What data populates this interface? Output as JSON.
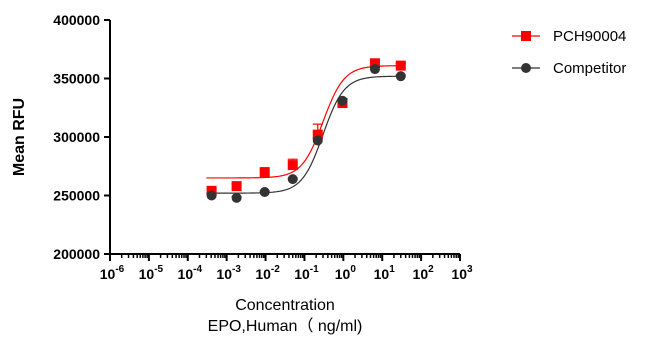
{
  "chart_data": {
    "type": "scatter",
    "xscale": "log",
    "xlim": [
      1e-06,
      1000
    ],
    "ylim": [
      200000,
      400000
    ],
    "yticks": [
      200000,
      250000,
      300000,
      350000,
      400000
    ],
    "ytick_labels": [
      "200000",
      "250000",
      "300000",
      "350000",
      "400000"
    ],
    "xticks": [
      {
        "base": "10",
        "exp": "-6"
      },
      {
        "base": "10",
        "exp": "-5"
      },
      {
        "base": "10",
        "exp": "-4"
      },
      {
        "base": "10",
        "exp": "-3"
      },
      {
        "base": "10",
        "exp": "-2"
      },
      {
        "base": "10",
        "exp": "-1"
      },
      {
        "base": "10",
        "exp": "0"
      },
      {
        "base": "10",
        "exp": "1"
      },
      {
        "base": "10",
        "exp": "2"
      },
      {
        "base": "10",
        "exp": "3"
      }
    ],
    "xlabel": "Concentration",
    "xlabel_line2": "EPO,Human（ ng/ml)",
    "ylabel": "Mean RFU",
    "legend_position": "top-right",
    "series": [
      {
        "name": "PCH90004",
        "color": "#ff0000",
        "marker": "square",
        "x": [
          0.00041,
          0.0018,
          0.0095,
          0.05,
          0.22,
          0.95,
          6.5,
          30
        ],
        "y": [
          254000,
          258000,
          270000,
          276000,
          302000,
          329000,
          363000,
          361000
        ],
        "error": [
          2000,
          2000,
          2000,
          5000,
          9000,
          2000,
          2000,
          2000
        ],
        "fit": {
          "bottom": 265000,
          "top": 361000,
          "ec50": 0.3,
          "hill": 1.6
        }
      },
      {
        "name": "Competitor",
        "color": "#333333",
        "marker": "circle",
        "x": [
          0.00041,
          0.0018,
          0.0095,
          0.05,
          0.22,
          0.95,
          6.5,
          30
        ],
        "y": [
          250000,
          248000,
          253000,
          264000,
          297000,
          331000,
          358000,
          352000
        ],
        "error": [
          1000,
          1000,
          1000,
          1000,
          2000,
          2000,
          2000,
          1000
        ],
        "fit": {
          "bottom": 252000,
          "top": 352000,
          "ec50": 0.3,
          "hill": 1.6
        }
      }
    ]
  }
}
